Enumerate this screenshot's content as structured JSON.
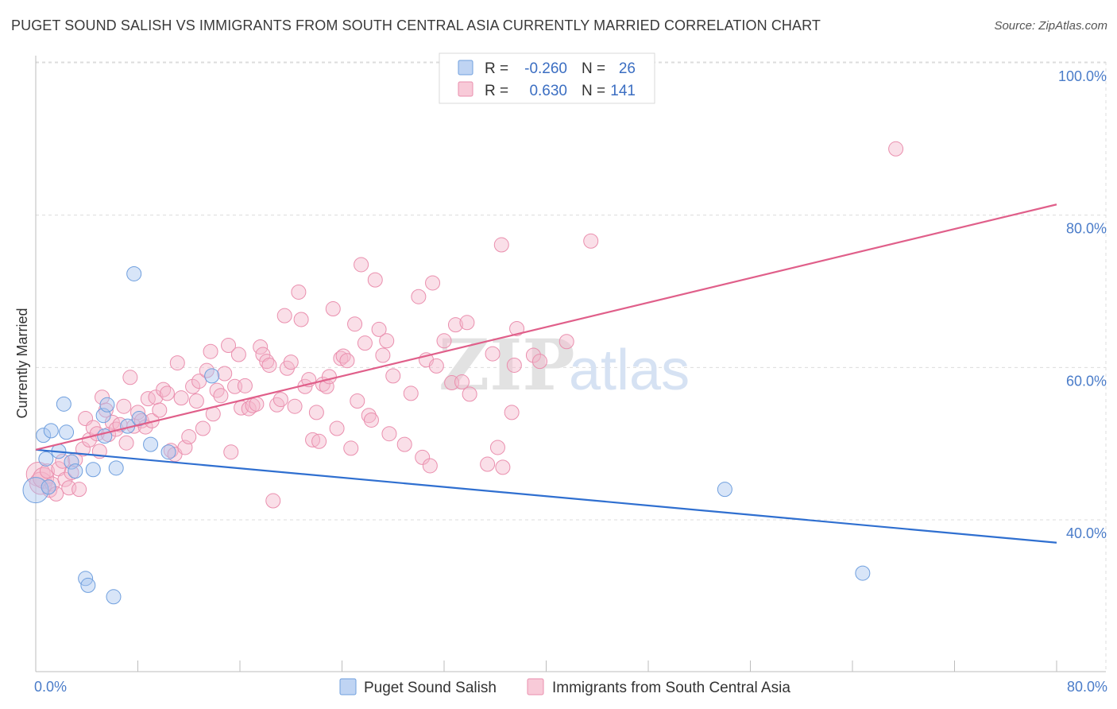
{
  "title": "PUGET SOUND SALISH VS IMMIGRANTS FROM SOUTH CENTRAL ASIA CURRENTLY MARRIED CORRELATION CHART",
  "source": "Source: ZipAtlas.com",
  "watermark": {
    "zip": "ZIP",
    "atlas": "atlas"
  },
  "legend": {
    "r_label": "R =",
    "n_label": "N =",
    "rows": [
      {
        "r": "-0.260",
        "n": "26",
        "color": "#a9c6ef"
      },
      {
        "r": "0.630",
        "n": "141",
        "color": "#f5b8cb"
      }
    ]
  },
  "chart_data": {
    "type": "scatter",
    "title": "PUGET SOUND SALISH VS IMMIGRANTS FROM SOUTH CENTRAL ASIA CURRENTLY MARRIED CORRELATION CHART",
    "xlabel": "",
    "ylabel": "Currently Married",
    "xlim": [
      0,
      80
    ],
    "ylim": [
      20,
      105
    ],
    "x_tick_labels": [
      {
        "value": 0,
        "label": "0.0%"
      },
      {
        "value": 80,
        "label": "80.0%"
      }
    ],
    "y_tick_labels": [
      {
        "value": 40,
        "label": "40.0%"
      },
      {
        "value": 60,
        "label": "60.0%"
      },
      {
        "value": 80,
        "label": "80.0%"
      },
      {
        "value": 100,
        "label": "100.0%"
      }
    ],
    "grid": true,
    "legend_position": "top-center",
    "series": [
      {
        "name": "Puget Sound Salish",
        "color": "#a9c6ef",
        "stroke": "#6f9fde",
        "line_color": "#2f6fd0",
        "trend": {
          "x": [
            0,
            80
          ],
          "y": [
            49.2,
            37.0
          ]
        },
        "points": [
          {
            "x": 0.0,
            "y": 43.9,
            "s": 16
          },
          {
            "x": 0.6,
            "y": 51.1
          },
          {
            "x": 0.8,
            "y": 48.0
          },
          {
            "x": 1.0,
            "y": 44.3
          },
          {
            "x": 1.2,
            "y": 51.7
          },
          {
            "x": 1.8,
            "y": 49.0
          },
          {
            "x": 2.2,
            "y": 55.2
          },
          {
            "x": 2.4,
            "y": 51.5
          },
          {
            "x": 2.8,
            "y": 47.6
          },
          {
            "x": 3.1,
            "y": 46.4
          },
          {
            "x": 3.9,
            "y": 32.3
          },
          {
            "x": 4.1,
            "y": 31.4
          },
          {
            "x": 4.5,
            "y": 46.6
          },
          {
            "x": 5.3,
            "y": 53.7
          },
          {
            "x": 5.4,
            "y": 51.0
          },
          {
            "x": 5.6,
            "y": 55.1
          },
          {
            "x": 6.1,
            "y": 29.9
          },
          {
            "x": 6.3,
            "y": 46.8
          },
          {
            "x": 7.2,
            "y": 52.3
          },
          {
            "x": 7.7,
            "y": 72.3
          },
          {
            "x": 8.1,
            "y": 53.3
          },
          {
            "x": 9.0,
            "y": 49.9
          },
          {
            "x": 10.4,
            "y": 48.9
          },
          {
            "x": 13.8,
            "y": 58.9
          },
          {
            "x": 54.0,
            "y": 44.0
          },
          {
            "x": 64.8,
            "y": 33.0
          }
        ]
      },
      {
        "name": "Immigrants from South Central Asia",
        "color": "#f5b8cb",
        "stroke": "#ea8fae",
        "line_color": "#e05f8a",
        "trend": {
          "x": [
            0,
            80
          ],
          "y": [
            49.2,
            81.4
          ]
        },
        "points": [
          {
            "x": 0.2,
            "y": 46.0,
            "s": 15
          },
          {
            "x": 0.4,
            "y": 44.8,
            "s": 14
          },
          {
            "x": 0.6,
            "y": 45.5,
            "s": 13
          },
          {
            "x": 0.9,
            "y": 46.4
          },
          {
            "x": 1.1,
            "y": 43.9
          },
          {
            "x": 1.3,
            "y": 44.7
          },
          {
            "x": 1.6,
            "y": 43.4
          },
          {
            "x": 1.8,
            "y": 46.7
          },
          {
            "x": 2.1,
            "y": 47.7
          },
          {
            "x": 2.3,
            "y": 45.3
          },
          {
            "x": 2.6,
            "y": 44.2
          },
          {
            "x": 2.8,
            "y": 46.2
          },
          {
            "x": 3.1,
            "y": 47.9
          },
          {
            "x": 3.4,
            "y": 44.0
          },
          {
            "x": 3.7,
            "y": 49.3
          },
          {
            "x": 3.9,
            "y": 53.3
          },
          {
            "x": 4.2,
            "y": 50.5
          },
          {
            "x": 4.5,
            "y": 52.1
          },
          {
            "x": 4.8,
            "y": 51.3
          },
          {
            "x": 5.0,
            "y": 49.0
          },
          {
            "x": 5.2,
            "y": 56.1
          },
          {
            "x": 5.5,
            "y": 54.4
          },
          {
            "x": 5.7,
            "y": 51.2
          },
          {
            "x": 6.0,
            "y": 52.8
          },
          {
            "x": 6.3,
            "y": 51.9
          },
          {
            "x": 6.6,
            "y": 52.5
          },
          {
            "x": 6.9,
            "y": 54.9
          },
          {
            "x": 7.1,
            "y": 50.1
          },
          {
            "x": 7.4,
            "y": 58.7
          },
          {
            "x": 7.7,
            "y": 52.3
          },
          {
            "x": 8.0,
            "y": 54.1
          },
          {
            "x": 8.3,
            "y": 53.0
          },
          {
            "x": 8.6,
            "y": 52.2
          },
          {
            "x": 8.8,
            "y": 55.9
          },
          {
            "x": 9.1,
            "y": 53.0
          },
          {
            "x": 9.4,
            "y": 56.1
          },
          {
            "x": 9.7,
            "y": 54.4
          },
          {
            "x": 10.0,
            "y": 57.1
          },
          {
            "x": 10.3,
            "y": 56.6
          },
          {
            "x": 10.6,
            "y": 49.1
          },
          {
            "x": 10.9,
            "y": 48.6
          },
          {
            "x": 11.1,
            "y": 60.6
          },
          {
            "x": 11.4,
            "y": 56.0
          },
          {
            "x": 11.7,
            "y": 49.5
          },
          {
            "x": 12.0,
            "y": 50.9
          },
          {
            "x": 12.3,
            "y": 57.5
          },
          {
            "x": 12.6,
            "y": 55.6
          },
          {
            "x": 12.8,
            "y": 58.2
          },
          {
            "x": 13.1,
            "y": 52.0
          },
          {
            "x": 13.4,
            "y": 59.6
          },
          {
            "x": 13.7,
            "y": 62.1
          },
          {
            "x": 13.9,
            "y": 53.9
          },
          {
            "x": 14.2,
            "y": 57.0
          },
          {
            "x": 14.5,
            "y": 56.3
          },
          {
            "x": 14.8,
            "y": 59.2
          },
          {
            "x": 15.1,
            "y": 62.9
          },
          {
            "x": 15.3,
            "y": 48.9
          },
          {
            "x": 15.6,
            "y": 57.5
          },
          {
            "x": 15.9,
            "y": 61.7
          },
          {
            "x": 16.1,
            "y": 54.7
          },
          {
            "x": 16.4,
            "y": 57.6
          },
          {
            "x": 16.7,
            "y": 54.6
          },
          {
            "x": 17.0,
            "y": 55.0
          },
          {
            "x": 17.3,
            "y": 55.2
          },
          {
            "x": 17.6,
            "y": 62.7
          },
          {
            "x": 17.8,
            "y": 61.7
          },
          {
            "x": 18.1,
            "y": 60.8
          },
          {
            "x": 18.3,
            "y": 60.3
          },
          {
            "x": 18.6,
            "y": 42.5
          },
          {
            "x": 18.9,
            "y": 55.1
          },
          {
            "x": 19.2,
            "y": 55.8
          },
          {
            "x": 19.5,
            "y": 66.8
          },
          {
            "x": 19.7,
            "y": 59.9
          },
          {
            "x": 20.0,
            "y": 60.7
          },
          {
            "x": 20.3,
            "y": 54.9
          },
          {
            "x": 20.6,
            "y": 69.9
          },
          {
            "x": 20.8,
            "y": 66.3
          },
          {
            "x": 21.1,
            "y": 57.5
          },
          {
            "x": 21.4,
            "y": 58.4
          },
          {
            "x": 21.7,
            "y": 50.5
          },
          {
            "x": 22.0,
            "y": 54.1
          },
          {
            "x": 22.2,
            "y": 50.3
          },
          {
            "x": 22.5,
            "y": 57.8
          },
          {
            "x": 22.8,
            "y": 57.5
          },
          {
            "x": 23.0,
            "y": 58.8
          },
          {
            "x": 23.3,
            "y": 67.7
          },
          {
            "x": 23.6,
            "y": 52.0
          },
          {
            "x": 23.9,
            "y": 61.2
          },
          {
            "x": 24.1,
            "y": 61.5
          },
          {
            "x": 24.4,
            "y": 60.9
          },
          {
            "x": 24.7,
            "y": 49.4
          },
          {
            "x": 25.0,
            "y": 65.7
          },
          {
            "x": 25.2,
            "y": 55.6
          },
          {
            "x": 25.5,
            "y": 73.5
          },
          {
            "x": 25.8,
            "y": 63.2
          },
          {
            "x": 26.1,
            "y": 53.7
          },
          {
            "x": 26.3,
            "y": 53.1
          },
          {
            "x": 26.6,
            "y": 71.5
          },
          {
            "x": 26.9,
            "y": 65.0
          },
          {
            "x": 27.2,
            "y": 61.6
          },
          {
            "x": 27.5,
            "y": 63.5
          },
          {
            "x": 27.7,
            "y": 51.3
          },
          {
            "x": 28.0,
            "y": 58.9
          },
          {
            "x": 28.9,
            "y": 49.9
          },
          {
            "x": 29.4,
            "y": 56.6
          },
          {
            "x": 30.0,
            "y": 69.3
          },
          {
            "x": 30.3,
            "y": 48.2
          },
          {
            "x": 30.6,
            "y": 61.0
          },
          {
            "x": 30.9,
            "y": 47.1
          },
          {
            "x": 31.1,
            "y": 71.1
          },
          {
            "x": 31.4,
            "y": 60.2
          },
          {
            "x": 32.0,
            "y": 63.5
          },
          {
            "x": 32.6,
            "y": 58.0
          },
          {
            "x": 32.9,
            "y": 65.6
          },
          {
            "x": 33.4,
            "y": 58.1
          },
          {
            "x": 33.8,
            "y": 65.9
          },
          {
            "x": 34.0,
            "y": 56.5
          },
          {
            "x": 35.4,
            "y": 47.3
          },
          {
            "x": 35.8,
            "y": 61.8
          },
          {
            "x": 36.2,
            "y": 49.5
          },
          {
            "x": 36.5,
            "y": 76.1
          },
          {
            "x": 36.6,
            "y": 46.9
          },
          {
            "x": 37.3,
            "y": 54.1
          },
          {
            "x": 37.5,
            "y": 60.3
          },
          {
            "x": 37.7,
            "y": 65.1
          },
          {
            "x": 39.0,
            "y": 61.6
          },
          {
            "x": 39.5,
            "y": 60.8
          },
          {
            "x": 41.6,
            "y": 63.4
          },
          {
            "x": 43.5,
            "y": 76.6
          },
          {
            "x": 67.4,
            "y": 88.7
          }
        ]
      }
    ]
  },
  "bottom_legend": [
    {
      "label": "Puget Sound Salish",
      "color": "#a9c6ef"
    },
    {
      "label": "Immigrants from South Central Asia",
      "color": "#f5b8cb"
    }
  ]
}
